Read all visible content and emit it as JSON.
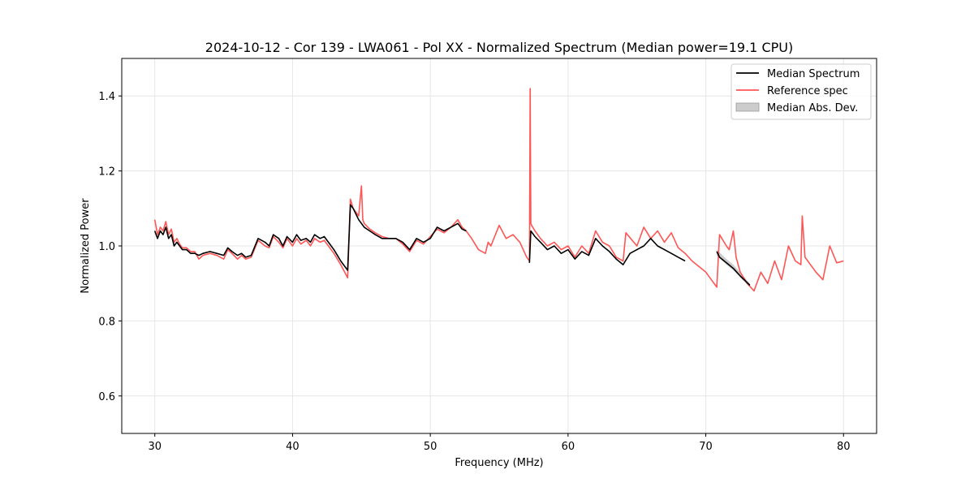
{
  "chart_data": {
    "type": "line",
    "title": "2024-10-12 - Cor 139 - LWA061 - Pol XX - Normalized Spectrum (Median power=19.1 CPU)",
    "xlabel": "Frequency (MHz)",
    "ylabel": "Normalized Power",
    "xlim": [
      27.6,
      82.4
    ],
    "ylim": [
      0.5,
      1.5
    ],
    "xticks": [
      30,
      40,
      50,
      60,
      70,
      80
    ],
    "yticks": [
      0.6,
      0.8,
      1.0,
      1.2,
      1.4
    ],
    "xtick_labels": [
      "30",
      "40",
      "50",
      "60",
      "70",
      "80"
    ],
    "ytick_labels": [
      "0.6",
      "0.8",
      "1.0",
      "1.2",
      "1.4"
    ],
    "grid": true,
    "legend_position": "top-right",
    "colors": {
      "median": "#000000",
      "reference": "#ff5555",
      "mad_fill": "#bfbfbf",
      "grid": "#e6e6e6"
    },
    "series": [
      {
        "name": "Median Spectrum",
        "x": [
          30.0,
          30.2,
          30.4,
          30.6,
          30.8,
          31.0,
          31.2,
          31.4,
          31.6,
          31.8,
          32.0,
          32.3,
          32.6,
          32.9,
          33.2,
          33.5,
          34.0,
          34.5,
          35.0,
          35.3,
          35.6,
          36.0,
          36.3,
          36.6,
          37.0,
          37.5,
          38.0,
          38.3,
          38.6,
          39.0,
          39.3,
          39.6,
          40.0,
          40.3,
          40.6,
          41.0,
          41.3,
          41.6,
          42.0,
          42.3,
          42.6,
          43.0,
          43.5,
          44.0,
          44.2,
          44.4,
          44.8,
          45.2,
          45.6,
          46.0,
          46.5,
          47.0,
          47.5,
          48.0,
          48.5,
          49.0,
          49.5,
          50.0,
          50.5,
          51.0,
          51.5,
          52.0,
          52.3,
          52.6,
          57.2,
          57.3,
          57.6,
          58.0,
          58.5,
          59.0,
          59.5,
          60.0,
          60.5,
          61.0,
          61.5,
          62.0,
          62.5,
          63.0,
          63.5,
          64.0,
          64.5,
          65.0,
          65.5,
          66.0,
          66.5,
          67.0,
          67.5,
          68.0,
          68.5,
          70.8,
          71.0,
          71.5,
          72.0,
          72.5,
          73.2
        ],
        "values": [
          1.04,
          1.02,
          1.04,
          1.03,
          1.05,
          1.02,
          1.03,
          1.0,
          1.01,
          1.0,
          0.99,
          0.99,
          0.98,
          0.98,
          0.975,
          0.98,
          0.985,
          0.98,
          0.975,
          0.995,
          0.985,
          0.975,
          0.98,
          0.97,
          0.975,
          1.02,
          1.01,
          1.0,
          1.03,
          1.02,
          1.0,
          1.025,
          1.01,
          1.03,
          1.015,
          1.02,
          1.01,
          1.03,
          1.02,
          1.025,
          1.01,
          0.99,
          0.96,
          0.935,
          1.11,
          1.1,
          1.07,
          1.05,
          1.04,
          1.03,
          1.02,
          1.02,
          1.02,
          1.01,
          0.99,
          1.02,
          1.01,
          1.02,
          1.05,
          1.04,
          1.05,
          1.06,
          1.045,
          1.04,
          0.955,
          1.04,
          1.025,
          1.01,
          0.99,
          1.0,
          0.98,
          0.99,
          0.965,
          0.985,
          0.975,
          1.02,
          1.0,
          0.985,
          0.965,
          0.95,
          0.98,
          0.99,
          1.0,
          1.02,
          1.0,
          0.99,
          0.98,
          0.97,
          0.96,
          0.985,
          0.97,
          0.955,
          0.94,
          0.92,
          0.895
        ]
      },
      {
        "name": "Reference spec",
        "x": [
          30.0,
          30.2,
          30.4,
          30.6,
          30.8,
          31.0,
          31.2,
          31.4,
          31.6,
          31.8,
          32.0,
          32.3,
          32.6,
          32.9,
          33.2,
          33.5,
          34.0,
          34.5,
          35.0,
          35.3,
          35.6,
          36.0,
          36.3,
          36.6,
          37.0,
          37.5,
          38.0,
          38.3,
          38.6,
          39.0,
          39.3,
          39.6,
          40.0,
          40.3,
          40.6,
          41.0,
          41.3,
          41.6,
          42.0,
          42.3,
          42.6,
          43.0,
          43.5,
          44.0,
          44.2,
          44.4,
          44.8,
          45.0,
          45.1,
          45.2,
          45.6,
          46.0,
          46.5,
          47.0,
          47.5,
          48.0,
          48.5,
          49.0,
          49.5,
          50.0,
          50.5,
          51.0,
          51.5,
          52.0,
          52.3,
          52.6,
          53.0,
          53.5,
          54.0,
          54.2,
          54.4,
          55.0,
          55.5,
          56.0,
          56.5,
          57.0,
          57.2,
          57.25,
          57.3,
          57.35,
          57.6,
          58.0,
          58.5,
          59.0,
          59.5,
          60.0,
          60.5,
          61.0,
          61.5,
          62.0,
          62.5,
          63.0,
          63.5,
          64.0,
          64.2,
          65.0,
          65.5,
          66.0,
          66.5,
          67.0,
          67.5,
          68.0,
          68.5,
          69.0,
          70.0,
          70.8,
          71.0,
          71.5,
          71.7,
          72.0,
          72.2,
          72.5,
          73.0,
          73.5,
          74.0,
          74.5,
          75.0,
          75.5,
          76.0,
          76.5,
          76.9,
          77.0,
          77.2,
          78.0,
          78.5,
          79.0,
          79.5,
          80.0
        ],
        "values": [
          1.07,
          1.03,
          1.05,
          1.04,
          1.065,
          1.03,
          1.045,
          1.01,
          1.02,
          1.005,
          0.995,
          0.995,
          0.985,
          0.985,
          0.965,
          0.975,
          0.98,
          0.975,
          0.965,
          0.99,
          0.98,
          0.965,
          0.975,
          0.965,
          0.97,
          1.015,
          1.0,
          0.995,
          1.025,
          1.01,
          0.995,
          1.02,
          1.0,
          1.02,
          1.005,
          1.015,
          1.0,
          1.02,
          1.01,
          1.015,
          1.0,
          0.98,
          0.95,
          0.915,
          1.125,
          1.1,
          1.08,
          1.16,
          1.07,
          1.06,
          1.045,
          1.035,
          1.025,
          1.02,
          1.02,
          1.005,
          0.985,
          1.015,
          1.005,
          1.025,
          1.045,
          1.035,
          1.05,
          1.07,
          1.05,
          1.04,
          1.02,
          0.99,
          0.98,
          1.01,
          1.0,
          1.055,
          1.02,
          1.03,
          1.01,
          0.97,
          0.96,
          1.42,
          1.06,
          1.055,
          1.04,
          1.02,
          1.0,
          1.01,
          0.99,
          1.0,
          0.97,
          1.0,
          0.98,
          1.04,
          1.01,
          1.0,
          0.97,
          0.96,
          1.035,
          1.0,
          1.05,
          1.02,
          1.04,
          1.01,
          1.035,
          0.995,
          0.98,
          0.96,
          0.93,
          0.89,
          1.03,
          1.0,
          0.99,
          1.04,
          0.97,
          0.93,
          0.9,
          0.88,
          0.93,
          0.9,
          0.96,
          0.91,
          1.0,
          0.96,
          0.95,
          1.08,
          0.97,
          0.93,
          0.91,
          1.0,
          0.955,
          0.96
        ]
      }
    ],
    "mad_band": {
      "name": "Median Abs. Dev.",
      "x": [
        70.8,
        71.5,
        72.0,
        73.2
      ],
      "lower": [
        0.975,
        0.95,
        0.935,
        0.89
      ],
      "upper": [
        0.99,
        0.965,
        0.95,
        0.9
      ]
    }
  }
}
